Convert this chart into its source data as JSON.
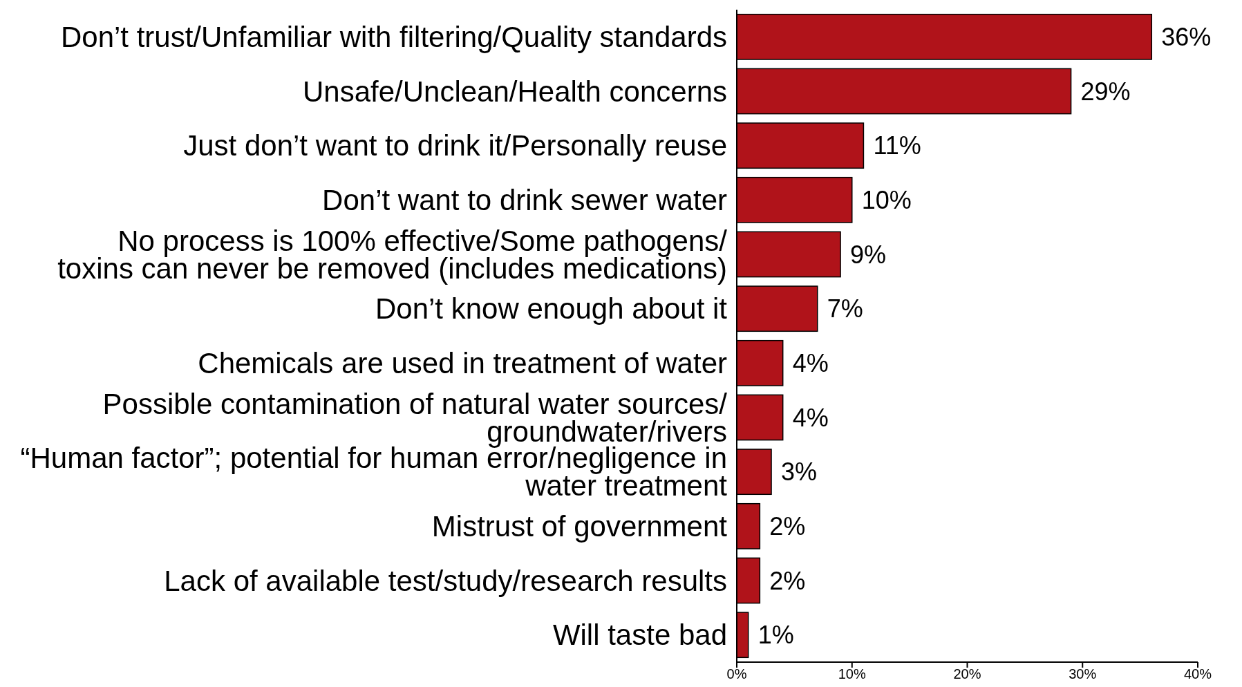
{
  "chart_data": {
    "type": "bar",
    "orientation": "horizontal",
    "categories": [
      "Don’t trust/Unfamiliar with filtering/Quality standards",
      "Unsafe/Unclean/Health concerns",
      "Just don’t want to drink it/Personally reuse",
      "Don’t want to drink sewer water",
      "No process is 100% effective/Some pathogens/\ntoxins can never be removed (includes medications)",
      "Don’t know enough about it",
      "Chemicals are used in treatment of water",
      "Possible contamination of natural water sources/\ngroundwater/rivers",
      "“Human factor”; potential for human error/negligence in\nwater treatment",
      "Mistrust of government",
      "Lack of available test/study/research results",
      "Will taste bad"
    ],
    "values": [
      36,
      29,
      11,
      10,
      9,
      7,
      4,
      4,
      3,
      2,
      2,
      1
    ],
    "value_labels": [
      "36%",
      "29%",
      "11%",
      "10%",
      "9%",
      "7%",
      "4%",
      "4%",
      "3%",
      "2%",
      "2%",
      "1%"
    ],
    "color": "#b0131a",
    "xlim": [
      0,
      40
    ],
    "xticks": [
      {
        "value": 0,
        "label": "0%"
      },
      {
        "value": 10,
        "label": "10%"
      },
      {
        "value": 20,
        "label": "20%"
      },
      {
        "value": 30,
        "label": "30%"
      },
      {
        "value": 40,
        "label": "40%"
      }
    ],
    "grid": false
  }
}
